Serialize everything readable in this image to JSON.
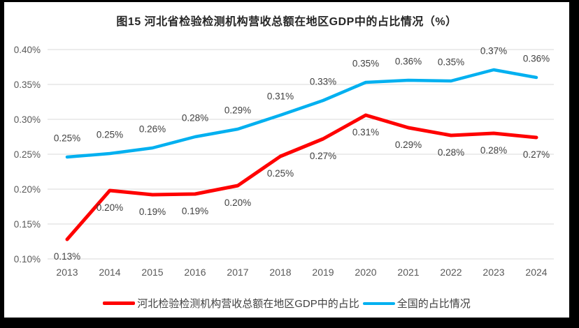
{
  "window": {
    "frame_color": "#000000",
    "canvas_color": "#FFFFFF"
  },
  "chart_data": {
    "type": "line",
    "title": "图15 河北省检验检测机构营收总额在地区GDP中的占比情况（%）",
    "categories": [
      "2013",
      "2014",
      "2015",
      "2016",
      "2017",
      "2018",
      "2019",
      "2020",
      "2021",
      "2022",
      "2023",
      "2024"
    ],
    "series": [
      {
        "name": "河北检验检测机构营收总额在地区GDP中的占比",
        "color": "#FF0000",
        "values": [
          0.13,
          0.2,
          0.19,
          0.19,
          0.2,
          0.25,
          0.27,
          0.31,
          0.29,
          0.28,
          0.28,
          0.27
        ],
        "values_precise": [
          0.128,
          0.198,
          0.192,
          0.193,
          0.205,
          0.247,
          0.272,
          0.306,
          0.288,
          0.277,
          0.28,
          0.274
        ],
        "label_position": "below"
      },
      {
        "name": "全国的占比情况",
        "color": "#00B0F0",
        "values": [
          0.25,
          0.25,
          0.26,
          0.28,
          0.29,
          0.31,
          0.33,
          0.35,
          0.36,
          0.35,
          0.37,
          0.36
        ],
        "values_precise": [
          0.246,
          0.251,
          0.259,
          0.275,
          0.286,
          0.306,
          0.327,
          0.353,
          0.356,
          0.355,
          0.371,
          0.36
        ],
        "label_position": "above"
      }
    ],
    "y_axis": {
      "tick_labels": [
        "0.40%",
        "0.35%",
        "0.30%",
        "0.25%",
        "0.20%",
        "0.15%",
        "0.10%"
      ],
      "min": 0.1,
      "max": 0.4,
      "step": 0.05
    },
    "grid": true,
    "data_labels": true,
    "legend_position": "bottom",
    "colors": {
      "gridline": "#D9D9D9",
      "axis_text": "#595959",
      "label_text": "#404040"
    }
  }
}
